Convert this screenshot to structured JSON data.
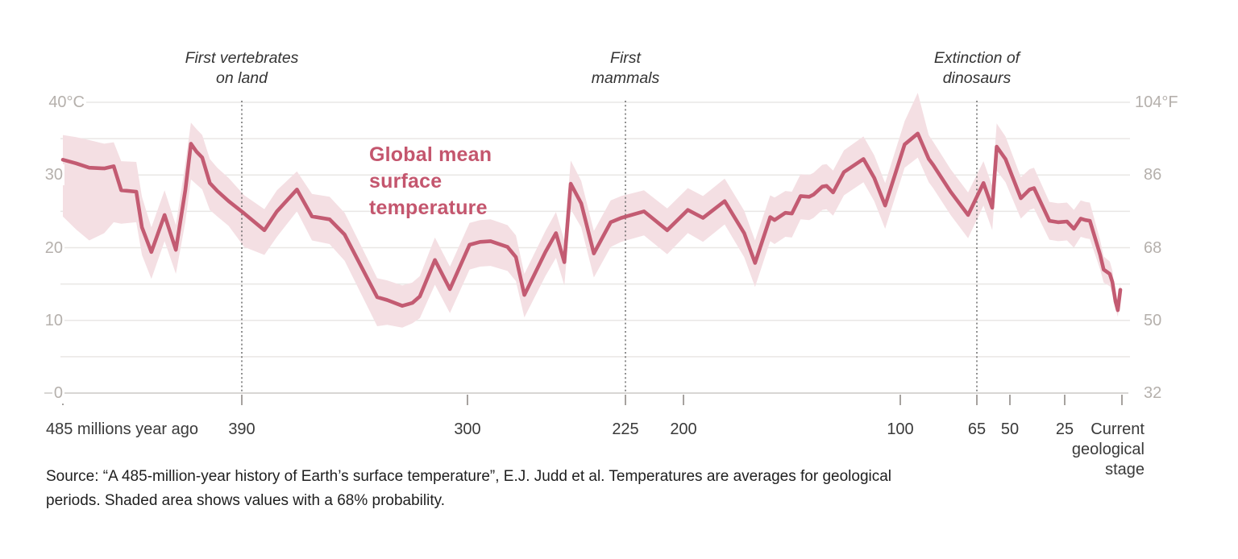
{
  "chart_data": {
    "type": "line",
    "title": "Global mean surface temperature",
    "xlabel": "millions of years ago",
    "ylabel_left": "degrees Celsius",
    "ylabel_right": "degrees Fahrenheit",
    "grid": true,
    "legend_position": "none",
    "ylim_c": [
      0,
      42
    ],
    "band_meaning": "68% probability interval",
    "y_axis_left": {
      "temps_c": [
        40,
        30,
        20,
        10,
        0
      ],
      "labels": [
        "40°C",
        "30",
        "20",
        "10",
        "0"
      ]
    },
    "y_axis_right": {
      "temps_c": [
        40,
        30,
        20,
        10,
        0
      ],
      "labels": [
        "104°F",
        "86",
        "68",
        "50",
        "32"
      ]
    },
    "gridline_temps_c": [
      5,
      10,
      15,
      20,
      25,
      30,
      35,
      40
    ],
    "x_axis": {
      "ticks_mya": [
        485,
        390,
        300,
        225,
        200,
        100,
        65,
        50,
        25,
        0
      ],
      "tick_labels": [
        "485 millions year ago",
        "390",
        "300",
        "225",
        "200",
        "100",
        "65",
        "50",
        "25",
        "Current geological stage"
      ],
      "first_label": "485 millions year ago",
      "last_label_lines": [
        "Current",
        "geological",
        "stage"
      ]
    },
    "annotations": [
      {
        "mya": 390,
        "lines": [
          "First vertebrates",
          "on land"
        ]
      },
      {
        "mya": 225,
        "lines": [
          "First",
          "mammals"
        ]
      },
      {
        "mya": 65,
        "lines": [
          "Extinction of",
          "dinosaurs"
        ]
      }
    ],
    "points_format": [
      "mya",
      "temp_c",
      "band_low_c",
      "band_high_c"
    ],
    "points": [
      [
        485,
        32.1,
        24.3,
        35.5
      ],
      [
        478,
        31.6,
        22.5,
        35.2
      ],
      [
        471,
        31.0,
        21.0,
        34.8
      ],
      [
        463,
        30.9,
        22.0,
        34.3
      ],
      [
        458,
        31.2,
        23.5,
        34.5
      ],
      [
        454,
        27.9,
        23.3,
        31.9
      ],
      [
        446,
        27.7,
        23.5,
        31.8
      ],
      [
        443,
        22.8,
        19.0,
        27.0
      ],
      [
        438,
        19.4,
        15.7,
        22.8
      ],
      [
        431,
        24.5,
        20.9,
        27.9
      ],
      [
        425,
        19.7,
        16.4,
        23.1
      ],
      [
        420,
        27.9,
        23.5,
        31.5
      ],
      [
        417,
        34.3,
        29.4,
        37.2
      ],
      [
        414,
        33.2,
        28.7,
        36.3
      ],
      [
        411,
        32.4,
        28.0,
        35.5
      ],
      [
        407,
        28.9,
        25.2,
        32.2
      ],
      [
        403,
        27.8,
        24.3,
        31.0
      ],
      [
        397,
        26.4,
        23.0,
        29.6
      ],
      [
        389,
        24.7,
        20.1,
        27.2
      ],
      [
        381,
        22.4,
        19.0,
        25.3
      ],
      [
        376,
        25.0,
        21.5,
        27.9
      ],
      [
        368,
        28.0,
        25.0,
        30.5
      ],
      [
        362,
        24.3,
        21.0,
        27.4
      ],
      [
        355,
        23.9,
        20.5,
        27.0
      ],
      [
        349,
        21.8,
        18.2,
        24.8
      ],
      [
        336,
        13.2,
        9.2,
        15.8
      ],
      [
        332,
        12.8,
        9.4,
        15.5
      ],
      [
        326,
        12.0,
        9.0,
        14.8
      ],
      [
        322,
        12.4,
        9.6,
        15.2
      ],
      [
        319,
        13.3,
        10.3,
        16.1
      ],
      [
        313,
        18.3,
        14.9,
        21.4
      ],
      [
        307,
        14.3,
        11.0,
        17.4
      ],
      [
        299,
        20.4,
        17.0,
        23.4
      ],
      [
        294,
        20.8,
        17.4,
        23.8
      ],
      [
        289,
        20.9,
        17.5,
        23.9
      ],
      [
        281,
        20.1,
        16.8,
        23.1
      ],
      [
        277,
        18.7,
        15.4,
        21.7
      ],
      [
        273,
        13.5,
        10.4,
        16.4
      ],
      [
        263,
        19.4,
        16.1,
        22.3
      ],
      [
        258,
        22.0,
        18.6,
        24.9
      ],
      [
        254,
        18.0,
        14.8,
        21.0
      ],
      [
        251,
        28.8,
        25.3,
        32.0
      ],
      [
        246,
        26.1,
        22.8,
        29.2
      ],
      [
        240,
        19.2,
        15.9,
        22.3
      ],
      [
        232,
        23.5,
        20.1,
        26.5
      ],
      [
        227,
        24.1,
        20.8,
        27.1
      ],
      [
        217,
        25.0,
        21.7,
        27.9
      ],
      [
        207,
        22.4,
        19.1,
        25.4
      ],
      [
        198,
        25.2,
        22.0,
        28.2
      ],
      [
        191,
        24.1,
        20.8,
        27.1
      ],
      [
        181,
        26.4,
        23.2,
        29.5
      ],
      [
        172,
        22.0,
        18.7,
        25.1
      ],
      [
        167,
        17.9,
        14.6,
        21.0
      ],
      [
        160,
        24.2,
        20.9,
        27.2
      ],
      [
        158,
        23.8,
        20.5,
        26.9
      ],
      [
        153,
        24.8,
        21.5,
        27.8
      ],
      [
        150,
        24.7,
        21.4,
        27.7
      ],
      [
        146,
        27.1,
        23.9,
        30.1
      ],
      [
        142,
        27.0,
        23.8,
        30.0
      ],
      [
        140,
        27.3,
        24.1,
        30.3
      ],
      [
        136,
        28.4,
        25.2,
        31.4
      ],
      [
        134,
        28.5,
        25.3,
        31.5
      ],
      [
        131,
        27.6,
        24.4,
        30.6
      ],
      [
        126,
        30.4,
        27.2,
        33.4
      ],
      [
        117,
        32.2,
        29.0,
        35.3
      ],
      [
        112,
        29.6,
        26.4,
        32.7
      ],
      [
        107,
        25.8,
        22.6,
        28.9
      ],
      [
        98,
        34.2,
        31.0,
        37.4
      ],
      [
        92,
        35.7,
        32.4,
        41.3
      ],
      [
        87,
        32.2,
        29.0,
        35.5
      ],
      [
        85,
        31.4,
        28.2,
        34.6
      ],
      [
        77,
        27.7,
        24.5,
        30.8
      ],
      [
        69,
        24.5,
        21.3,
        27.6
      ],
      [
        62,
        28.9,
        25.8,
        31.9
      ],
      [
        58,
        25.5,
        22.4,
        28.5
      ],
      [
        56,
        33.9,
        30.6,
        37.1
      ],
      [
        52,
        32.2,
        29.0,
        35.3
      ],
      [
        45,
        26.8,
        24.0,
        29.7
      ],
      [
        41,
        28.0,
        25.2,
        30.8
      ],
      [
        39,
        28.2,
        25.4,
        31.0
      ],
      [
        32,
        23.7,
        21.1,
        26.3
      ],
      [
        28,
        23.5,
        20.9,
        26.1
      ],
      [
        24,
        23.6,
        21.0,
        26.2
      ],
      [
        21,
        22.6,
        20.0,
        25.2
      ],
      [
        18,
        24.0,
        21.5,
        26.5
      ],
      [
        16,
        23.8,
        21.3,
        26.3
      ],
      [
        14,
        23.7,
        21.2,
        26.2
      ],
      [
        9.5,
        19.0,
        17.0,
        21.0
      ],
      [
        8,
        17.0,
        15.2,
        18.8
      ],
      [
        5.3,
        16.4,
        14.7,
        18.1
      ],
      [
        4.2,
        15.3,
        13.7,
        16.9
      ],
      [
        2.8,
        12.6,
        11.6,
        13.6
      ],
      [
        1.8,
        11.4,
        10.5,
        12.3
      ],
      [
        0.7,
        14.2,
        13.3,
        15.1
      ]
    ]
  },
  "label": {
    "line1": "Global mean",
    "line2": "surface",
    "line3": "temperature"
  },
  "source": {
    "text": "Source: “A 485-million-year history of Earth’s surface temperature”, E.J. Judd et al. Temperatures are averages for geological periods. Shaded area shows values with a 68% probability."
  },
  "colors": {
    "line": "#c35b72",
    "band": "#f4dfe3",
    "label": "#c4566e",
    "gridline": "#e9e7e5",
    "axis": "#ccc9c6",
    "tick": "#8f8b87",
    "dashed_line": "#606060",
    "y_label": "#b5b0ac",
    "x_label": "#3a3a3a"
  }
}
